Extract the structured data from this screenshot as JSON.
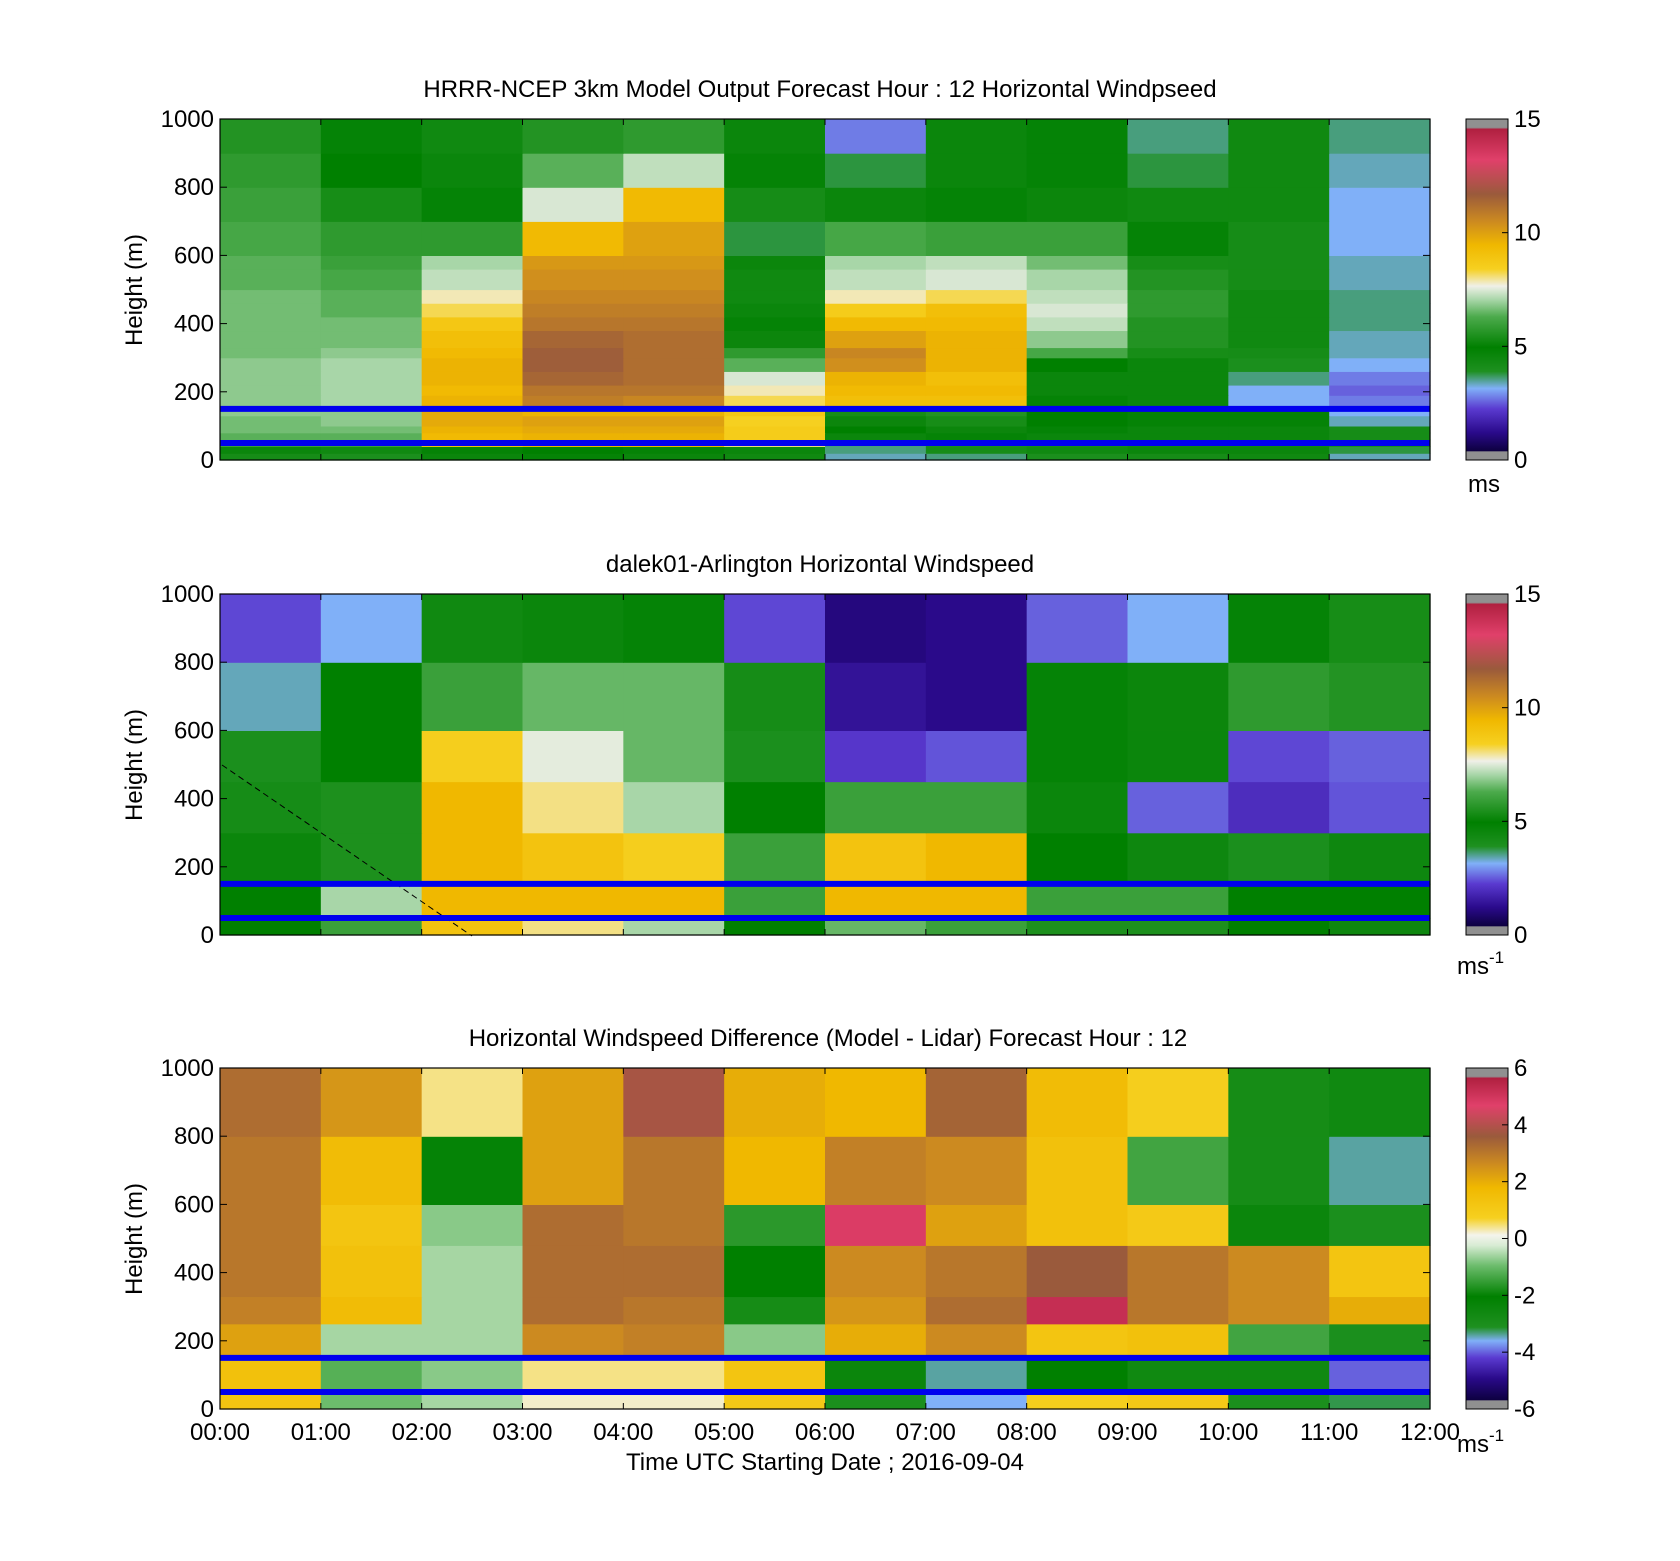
{
  "x_axis": {
    "label": "Time UTC  Starting Date ; 2016-09-04",
    "ticks": [
      "00:00",
      "01:00",
      "02:00",
      "03:00",
      "04:00",
      "05:00",
      "06:00",
      "07:00",
      "08:00",
      "09:00",
      "10:00",
      "11:00",
      "12:00"
    ]
  },
  "y_axis": {
    "label": "Height (m)",
    "ticks": [
      "0",
      "200",
      "400",
      "600",
      "800",
      "1000"
    ],
    "range": [
      0,
      1000
    ]
  },
  "reference_lines_m": [
    50,
    150
  ],
  "reference_line_color": "#0000ee",
  "chart_data": [
    {
      "type": "heatmap",
      "title": "HRRR-NCEP 3km Model Output   Forecast Hour : 12 Horizontal Windpseed",
      "ylabel": "Height (m)",
      "ylim": [
        0,
        1000
      ],
      "x_hours": [
        0,
        1,
        2,
        3,
        4,
        5,
        6,
        7,
        8,
        9,
        10,
        11
      ],
      "colorbar": {
        "min": 0,
        "max": 15,
        "ticks": [
          "0",
          "5",
          "10",
          "15"
        ],
        "unit": "ms",
        "unit_sup": ""
      },
      "rows": [
        {
          "z_bottom": 0,
          "z_top": 20,
          "values": [
            4.2,
            4.0,
            4.6,
            4.8,
            4.6,
            4.4,
            3.4,
            3.6,
            4.0,
            4.2,
            4.4,
            3.4
          ]
        },
        {
          "z_bottom": 20,
          "z_top": 40,
          "values": [
            4.6,
            4.4,
            4.8,
            5.0,
            4.8,
            4.6,
            3.6,
            4.2,
            4.4,
            4.6,
            4.6,
            3.8
          ]
        },
        {
          "z_bottom": 40,
          "z_top": 60,
          "values": [
            6.0,
            6.0,
            8.8,
            9.4,
            9.4,
            8.0,
            3.6,
            4.0,
            4.2,
            4.4,
            4.4,
            4.0
          ]
        },
        {
          "z_bottom": 60,
          "z_top": 80,
          "values": [
            6.4,
            6.4,
            9.4,
            9.6,
            9.6,
            8.6,
            4.6,
            4.8,
            4.6,
            4.6,
            4.6,
            4.2
          ]
        },
        {
          "z_bottom": 80,
          "z_top": 100,
          "values": [
            6.6,
            6.6,
            9.6,
            9.8,
            9.8,
            8.6,
            5.0,
            5.2,
            4.8,
            4.6,
            4.6,
            4.2
          ]
        },
        {
          "z_bottom": 100,
          "z_top": 130,
          "values": [
            6.6,
            6.8,
            9.8,
            10.0,
            10.0,
            8.4,
            5.2,
            5.4,
            5.0,
            4.8,
            4.8,
            3.4
          ]
        },
        {
          "z_bottom": 130,
          "z_top": 160,
          "values": [
            6.8,
            6.8,
            9.8,
            9.6,
            9.6,
            8.8,
            5.4,
            5.6,
            5.0,
            4.8,
            4.8,
            3.2
          ]
        },
        {
          "z_bottom": 160,
          "z_top": 190,
          "values": [
            6.8,
            7.0,
            9.6,
            10.8,
            10.6,
            8.2,
            9.2,
            9.2,
            4.8,
            4.6,
            3.2,
            2.8
          ]
        },
        {
          "z_bottom": 190,
          "z_top": 220,
          "values": [
            6.8,
            7.0,
            9.4,
            11.0,
            11.0,
            7.8,
            9.4,
            9.4,
            4.6,
            4.6,
            3.2,
            2.6
          ]
        },
        {
          "z_bottom": 220,
          "z_top": 260,
          "values": [
            6.8,
            7.0,
            9.6,
            11.4,
            11.2,
            7.4,
            9.6,
            9.2,
            4.6,
            4.6,
            3.6,
            2.8
          ]
        },
        {
          "z_bottom": 260,
          "z_top": 300,
          "values": [
            6.8,
            7.0,
            9.6,
            11.6,
            11.2,
            6.4,
            10.4,
            9.6,
            5.0,
            4.6,
            4.0,
            3.2
          ]
        },
        {
          "z_bottom": 300,
          "z_top": 330,
          "values": [
            6.6,
            6.8,
            9.4,
            11.6,
            11.2,
            5.8,
            10.6,
            9.6,
            6.2,
            5.4,
            4.2,
            3.4
          ]
        },
        {
          "z_bottom": 330,
          "z_top": 380,
          "values": [
            6.6,
            6.6,
            9.2,
            11.4,
            11.2,
            5.2,
            10.0,
            9.6,
            6.8,
            5.6,
            4.4,
            3.4
          ]
        },
        {
          "z_bottom": 380,
          "z_top": 420,
          "values": [
            6.6,
            6.6,
            8.8,
            11.0,
            11.0,
            4.8,
            9.4,
            9.4,
            7.2,
            5.6,
            4.4,
            3.6
          ]
        },
        {
          "z_bottom": 420,
          "z_top": 460,
          "values": [
            6.6,
            6.4,
            8.2,
            10.8,
            10.8,
            4.6,
            8.6,
            9.2,
            7.4,
            5.8,
            4.4,
            3.6
          ]
        },
        {
          "z_bottom": 460,
          "z_top": 500,
          "values": [
            6.6,
            6.4,
            7.8,
            10.6,
            10.6,
            4.4,
            7.8,
            8.2,
            7.2,
            5.8,
            4.4,
            3.6
          ]
        },
        {
          "z_bottom": 500,
          "z_top": 560,
          "values": [
            6.4,
            6.2,
            7.2,
            10.4,
            10.4,
            4.4,
            7.2,
            7.4,
            7.0,
            5.6,
            4.2,
            3.4
          ]
        },
        {
          "z_bottom": 560,
          "z_top": 600,
          "values": [
            6.4,
            6.0,
            7.0,
            10.2,
            10.2,
            4.6,
            7.0,
            7.2,
            6.6,
            5.4,
            4.2,
            3.4
          ]
        },
        {
          "z_bottom": 600,
          "z_top": 700,
          "values": [
            6.2,
            5.8,
            5.8,
            9.4,
            10.0,
            3.8,
            6.2,
            6.0,
            6.0,
            4.8,
            4.2,
            3.2
          ]
        },
        {
          "z_bottom": 700,
          "z_top": 800,
          "values": [
            6.0,
            5.4,
            4.8,
            7.4,
            9.4,
            4.2,
            4.6,
            4.8,
            5.2,
            4.4,
            4.4,
            3.2
          ]
        },
        {
          "z_bottom": 800,
          "z_top": 900,
          "values": [
            5.8,
            5.0,
            4.6,
            6.4,
            7.2,
            4.8,
            3.8,
            4.6,
            4.8,
            3.8,
            4.4,
            3.4
          ]
        },
        {
          "z_bottom": 900,
          "z_top": 1000,
          "values": [
            5.6,
            4.8,
            4.4,
            5.6,
            5.8,
            4.6,
            2.8,
            4.6,
            4.8,
            3.6,
            4.4,
            3.6
          ]
        }
      ]
    },
    {
      "type": "heatmap",
      "title": "dalek01-Arlington  Horizontal Windspeed",
      "ylabel": "Height (m)",
      "ylim": [
        0,
        1000
      ],
      "x_hours": [
        0,
        1,
        2,
        3,
        4,
        5,
        6,
        7,
        8,
        9,
        10,
        11
      ],
      "colorbar": {
        "min": 0,
        "max": 15,
        "ticks": [
          "0",
          "5",
          "10",
          "15"
        ],
        "unit": "ms",
        "unit_sup": "-1"
      },
      "rows": [
        {
          "z_bottom": 0,
          "z_top": 50,
          "values": [
            5.0,
            6.0,
            9.0,
            8.0,
            7.0,
            5.0,
            6.5,
            6.0,
            5.5,
            5.5,
            5.0,
            4.5
          ]
        },
        {
          "z_bottom": 50,
          "z_top": 150,
          "values": [
            5.0,
            7.0,
            9.5,
            9.5,
            9.5,
            6.0,
            9.5,
            9.5,
            6.0,
            6.0,
            5.0,
            5.0
          ]
        },
        {
          "z_bottom": 150,
          "z_top": 300,
          "values": [
            4.6,
            5.5,
            9.5,
            9.0,
            8.5,
            6.0,
            9.0,
            9.5,
            5.0,
            4.5,
            4.0,
            4.5
          ]
        },
        {
          "z_bottom": 300,
          "z_top": 450,
          "values": [
            4.2,
            5.5,
            9.5,
            8.0,
            7.0,
            5.0,
            6.0,
            6.0,
            4.6,
            2.6,
            2.0,
            2.5
          ]
        },
        {
          "z_bottom": 450,
          "z_top": 600,
          "values": [
            4.0,
            5.0,
            8.5,
            7.5,
            6.5,
            4.0,
            2.2,
            2.5,
            4.8,
            4.6,
            2.4,
            2.6
          ]
        },
        {
          "z_bottom": 600,
          "z_top": 800,
          "values": [
            3.4,
            5.0,
            6.0,
            6.5,
            6.5,
            4.2,
            1.4,
            1.2,
            4.8,
            5.2,
            5.8,
            5.6
          ]
        },
        {
          "z_bottom": 800,
          "z_top": 1000,
          "values": [
            2.4,
            3.2,
            4.4,
            4.6,
            4.8,
            2.4,
            1.0,
            1.2,
            2.6,
            3.2,
            4.8,
            5.4
          ]
        }
      ]
    },
    {
      "type": "heatmap",
      "title": "Horizontal Windspeed Difference (Model - Lidar) Forecast Hour : 12",
      "ylabel": "Height (m)",
      "ylim": [
        0,
        1000
      ],
      "x_hours": [
        0,
        1,
        2,
        3,
        4,
        5,
        6,
        7,
        8,
        9,
        10,
        11
      ],
      "colorbar": {
        "min": -6,
        "max": 6,
        "ticks": [
          "-6",
          "-4",
          "-2",
          "0",
          "2",
          "4",
          "6"
        ],
        "unit": "ms",
        "unit_sup": "-1"
      },
      "rows": [
        {
          "z_bottom": 0,
          "z_top": 50,
          "values": [
            1.2,
            -1.0,
            -0.6,
            0.2,
            0.2,
            1.0,
            -3.0,
            -3.6,
            0.8,
            1.0,
            -3.0,
            -3.2
          ]
        },
        {
          "z_bottom": 50,
          "z_top": 150,
          "values": [
            1.4,
            -1.2,
            -0.8,
            0.4,
            0.4,
            1.2,
            -2.4,
            -3.4,
            -2.0,
            -2.6,
            -2.6,
            -4.0
          ]
        },
        {
          "z_bottom": 150,
          "z_top": 250,
          "values": [
            2.2,
            -0.6,
            -0.6,
            2.6,
            2.8,
            -0.8,
            2.0,
            2.6,
            1.2,
            1.4,
            -1.4,
            -3.0
          ]
        },
        {
          "z_bottom": 250,
          "z_top": 330,
          "values": [
            2.8,
            1.6,
            -0.6,
            3.2,
            3.0,
            -1.8,
            2.4,
            3.2,
            5.2,
            3.0,
            2.6,
            2.0
          ]
        },
        {
          "z_bottom": 330,
          "z_top": 480,
          "values": [
            3.0,
            1.4,
            -0.6,
            3.2,
            3.2,
            -2.0,
            2.6,
            3.0,
            3.6,
            3.0,
            2.6,
            1.2
          ]
        },
        {
          "z_bottom": 480,
          "z_top": 600,
          "values": [
            3.0,
            1.2,
            -0.8,
            3.2,
            3.0,
            -1.6,
            4.8,
            2.2,
            1.4,
            1.0,
            -2.4,
            -3.0
          ]
        },
        {
          "z_bottom": 600,
          "z_top": 800,
          "values": [
            3.0,
            1.6,
            -2.2,
            2.2,
            3.0,
            1.8,
            2.8,
            2.6,
            1.4,
            -1.4,
            -2.8,
            -3.4
          ]
        },
        {
          "z_bottom": 800,
          "z_top": 1000,
          "values": [
            3.2,
            2.4,
            0.4,
            2.2,
            3.8,
            2.0,
            1.8,
            3.4,
            1.6,
            0.8,
            -1.8,
            -2.6
          ]
        }
      ]
    }
  ]
}
